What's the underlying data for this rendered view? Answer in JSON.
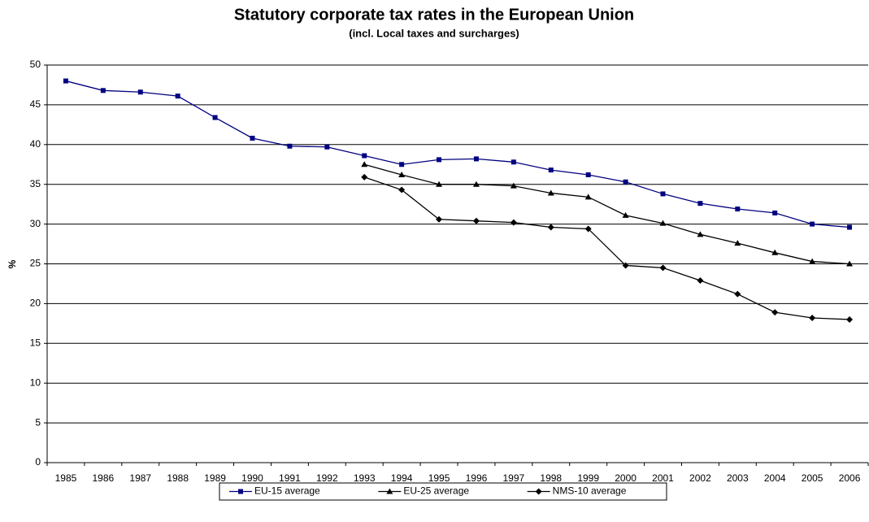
{
  "chart_data": {
    "type": "line",
    "title": "Statutory corporate tax rates in the European Union",
    "subtitle": "(incl. Local taxes and surcharges)",
    "y_label": "%",
    "categories": [
      "1985",
      "1986",
      "1987",
      "1988",
      "1989",
      "1990",
      "1991",
      "1992",
      "1993",
      "1994",
      "1995",
      "1996",
      "1997",
      "1998",
      "1999",
      "2000",
      "2001",
      "2002",
      "2003",
      "2004",
      "2005",
      "2006"
    ],
    "series": [
      {
        "name": "EU-15 average",
        "color": "#000080",
        "marker": "square",
        "values": [
          48,
          46.8,
          46.6,
          46.1,
          43.4,
          40.8,
          39.8,
          39.7,
          38.6,
          37.5,
          38.1,
          38.2,
          37.8,
          36.8,
          36.2,
          35.3,
          33.8,
          32.6,
          31.9,
          31.4,
          30.0,
          29.6
        ]
      },
      {
        "name": "EU-25 average",
        "color": "#000000",
        "marker": "triangle",
        "values": [
          null,
          null,
          null,
          null,
          null,
          null,
          null,
          null,
          37.5,
          36.2,
          35.0,
          35.0,
          34.8,
          33.9,
          33.4,
          31.1,
          30.1,
          28.7,
          27.6,
          26.4,
          25.3,
          25.0
        ]
      },
      {
        "name": "NMS-10 average",
        "color": "#000000",
        "marker": "diamond",
        "values": [
          null,
          null,
          null,
          null,
          null,
          null,
          null,
          null,
          35.9,
          34.3,
          30.6,
          30.4,
          30.2,
          29.6,
          29.4,
          24.8,
          24.5,
          22.9,
          21.2,
          18.9,
          18.2,
          18.0
        ]
      }
    ],
    "ylim": [
      0,
      50
    ],
    "yticks": [
      0,
      5,
      10,
      15,
      20,
      25,
      30,
      35,
      40,
      45,
      50
    ],
    "grid": true,
    "legend": "bottom"
  }
}
